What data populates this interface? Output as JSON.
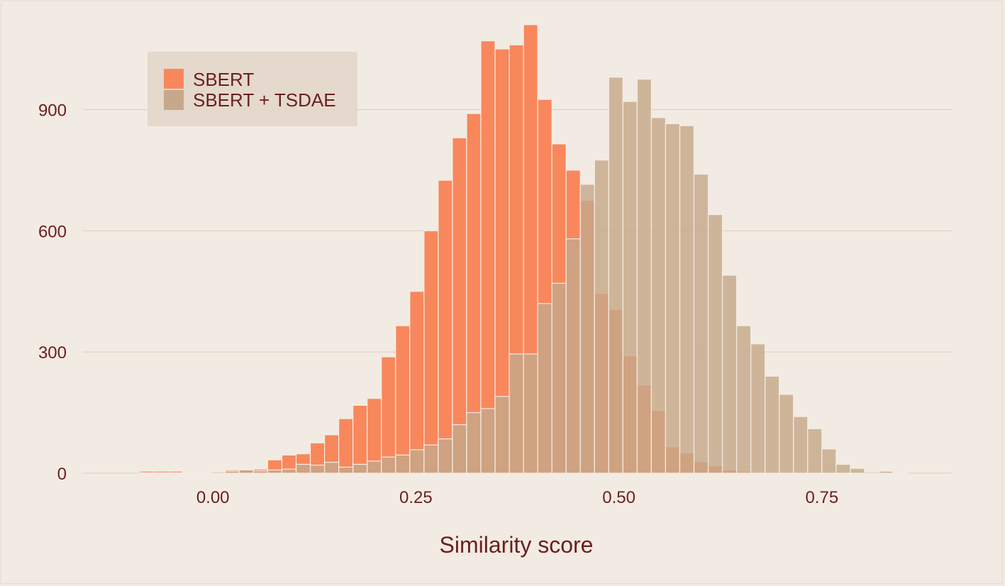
{
  "chart_data": {
    "type": "histogram",
    "title": "",
    "xlabel": "Similarity score",
    "ylabel": "",
    "xlim": [
      -0.16,
      0.91
    ],
    "ylim": [
      0,
      1150
    ],
    "bin_start": -0.09,
    "bin_width": 0.0175,
    "xticks": [
      0.0,
      0.25,
      0.5,
      0.75
    ],
    "xtick_labels": [
      "0.00",
      "0.25",
      "0.50",
      "0.75"
    ],
    "yticks": [
      0,
      300,
      600,
      900
    ],
    "ytick_labels": [
      "0",
      "300",
      "600",
      "900"
    ],
    "grid": "horizontal",
    "legend_position": "top-left",
    "series": [
      {
        "name": "SBERT",
        "color": "#f9875c",
        "values": [
          5,
          5,
          5,
          3,
          3,
          3,
          8,
          10,
          10,
          33,
          45,
          48,
          75,
          95,
          135,
          168,
          185,
          288,
          365,
          450,
          600,
          725,
          830,
          890,
          1070,
          1050,
          1060,
          1110,
          925,
          815,
          750,
          675,
          445,
          405,
          290,
          218,
          155,
          65,
          50,
          28,
          18,
          8,
          4,
          2,
          1,
          1,
          0,
          0,
          0,
          0,
          0,
          0,
          0,
          0,
          0,
          0,
          0
        ]
      },
      {
        "name": "SBERT + TSDAE",
        "color": "#c6a88a",
        "values": [
          1,
          1,
          1,
          1,
          1,
          3,
          5,
          8,
          6,
          8,
          10,
          22,
          20,
          27,
          15,
          22,
          30,
          40,
          45,
          58,
          70,
          85,
          120,
          150,
          160,
          190,
          295,
          295,
          420,
          470,
          580,
          715,
          775,
          980,
          920,
          975,
          880,
          865,
          860,
          740,
          640,
          490,
          365,
          320,
          240,
          195,
          140,
          110,
          60,
          22,
          12,
          3,
          5,
          1,
          0,
          0,
          0
        ]
      }
    ]
  }
}
